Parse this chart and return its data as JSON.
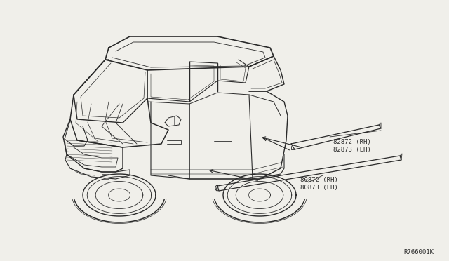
{
  "background_color": "#f0efea",
  "line_color": "#2a2a2a",
  "text_color": "#2a2a2a",
  "diagram_code": "R766001K",
  "label_upper": "82872 (RH)\n82873 (LH)",
  "label_lower": "80872 (RH)\n80873 (LH)",
  "font_size_label": 6.5,
  "font_size_code": 6.5,
  "car_scale": 1.0,
  "figsize": [
    6.4,
    3.72
  ],
  "dpi": 100
}
